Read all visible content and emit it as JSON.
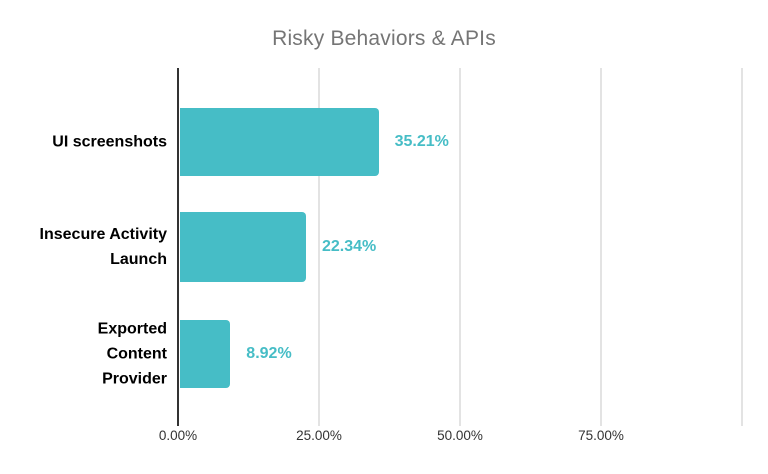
{
  "chart_data": {
    "type": "bar",
    "orientation": "horizontal",
    "title": "Risky Behaviors & APIs",
    "categories": [
      "UI screenshots",
      "Insecure Activity Launch",
      "Exported Content Provider"
    ],
    "category_lines": [
      [
        "UI screenshots"
      ],
      [
        "Insecure Activity",
        "Launch"
      ],
      [
        "Exported",
        "Content",
        "Provider"
      ]
    ],
    "values": [
      35.21,
      22.34,
      8.92
    ],
    "value_labels": [
      "35.21%",
      "22.34%",
      "8.92%"
    ],
    "x_ticks": [
      "0.00%",
      "25.00%",
      "50.00%",
      "75.00%"
    ],
    "x_tick_values": [
      0,
      25,
      50,
      75
    ],
    "xlim": [
      0,
      100
    ],
    "grid": true,
    "legend": "none",
    "colors": {
      "bar": "#46bdc6",
      "value-label": "#46bdc6",
      "title": "#757575",
      "axis-label": "#333333",
      "category-label": "#000000",
      "gridline": "#e3e3e3",
      "axis-line": "#333333",
      "background": "#ffffff"
    }
  }
}
